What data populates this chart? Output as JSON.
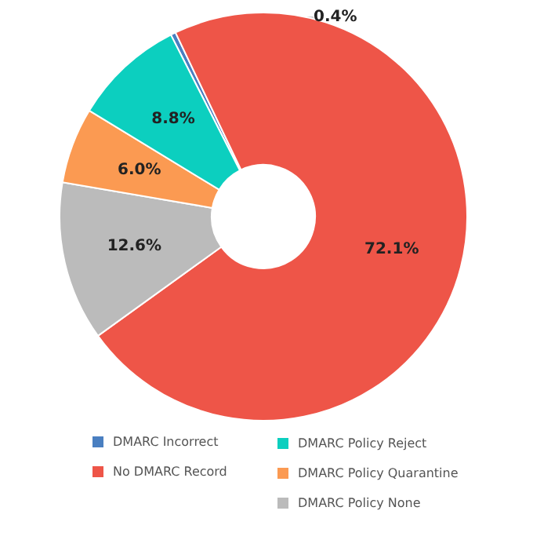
{
  "chart_data": {
    "type": "donut",
    "categories": [
      "DMARC Incorrect",
      "No DMARC Record",
      "DMARC Policy None",
      "DMARC Policy Quarantine",
      "DMARC Policy Reject"
    ],
    "values": [
      0.4,
      72.1,
      12.6,
      6.0,
      8.8
    ],
    "value_labels": [
      "0.4%",
      "72.1%",
      "12.6%",
      "6.0%",
      "8.8%"
    ],
    "colors": [
      "#4a7fc1",
      "#ee5548",
      "#bbbbbb",
      "#fb9a52",
      "#0ccfbf"
    ],
    "legend": "bottom"
  }
}
